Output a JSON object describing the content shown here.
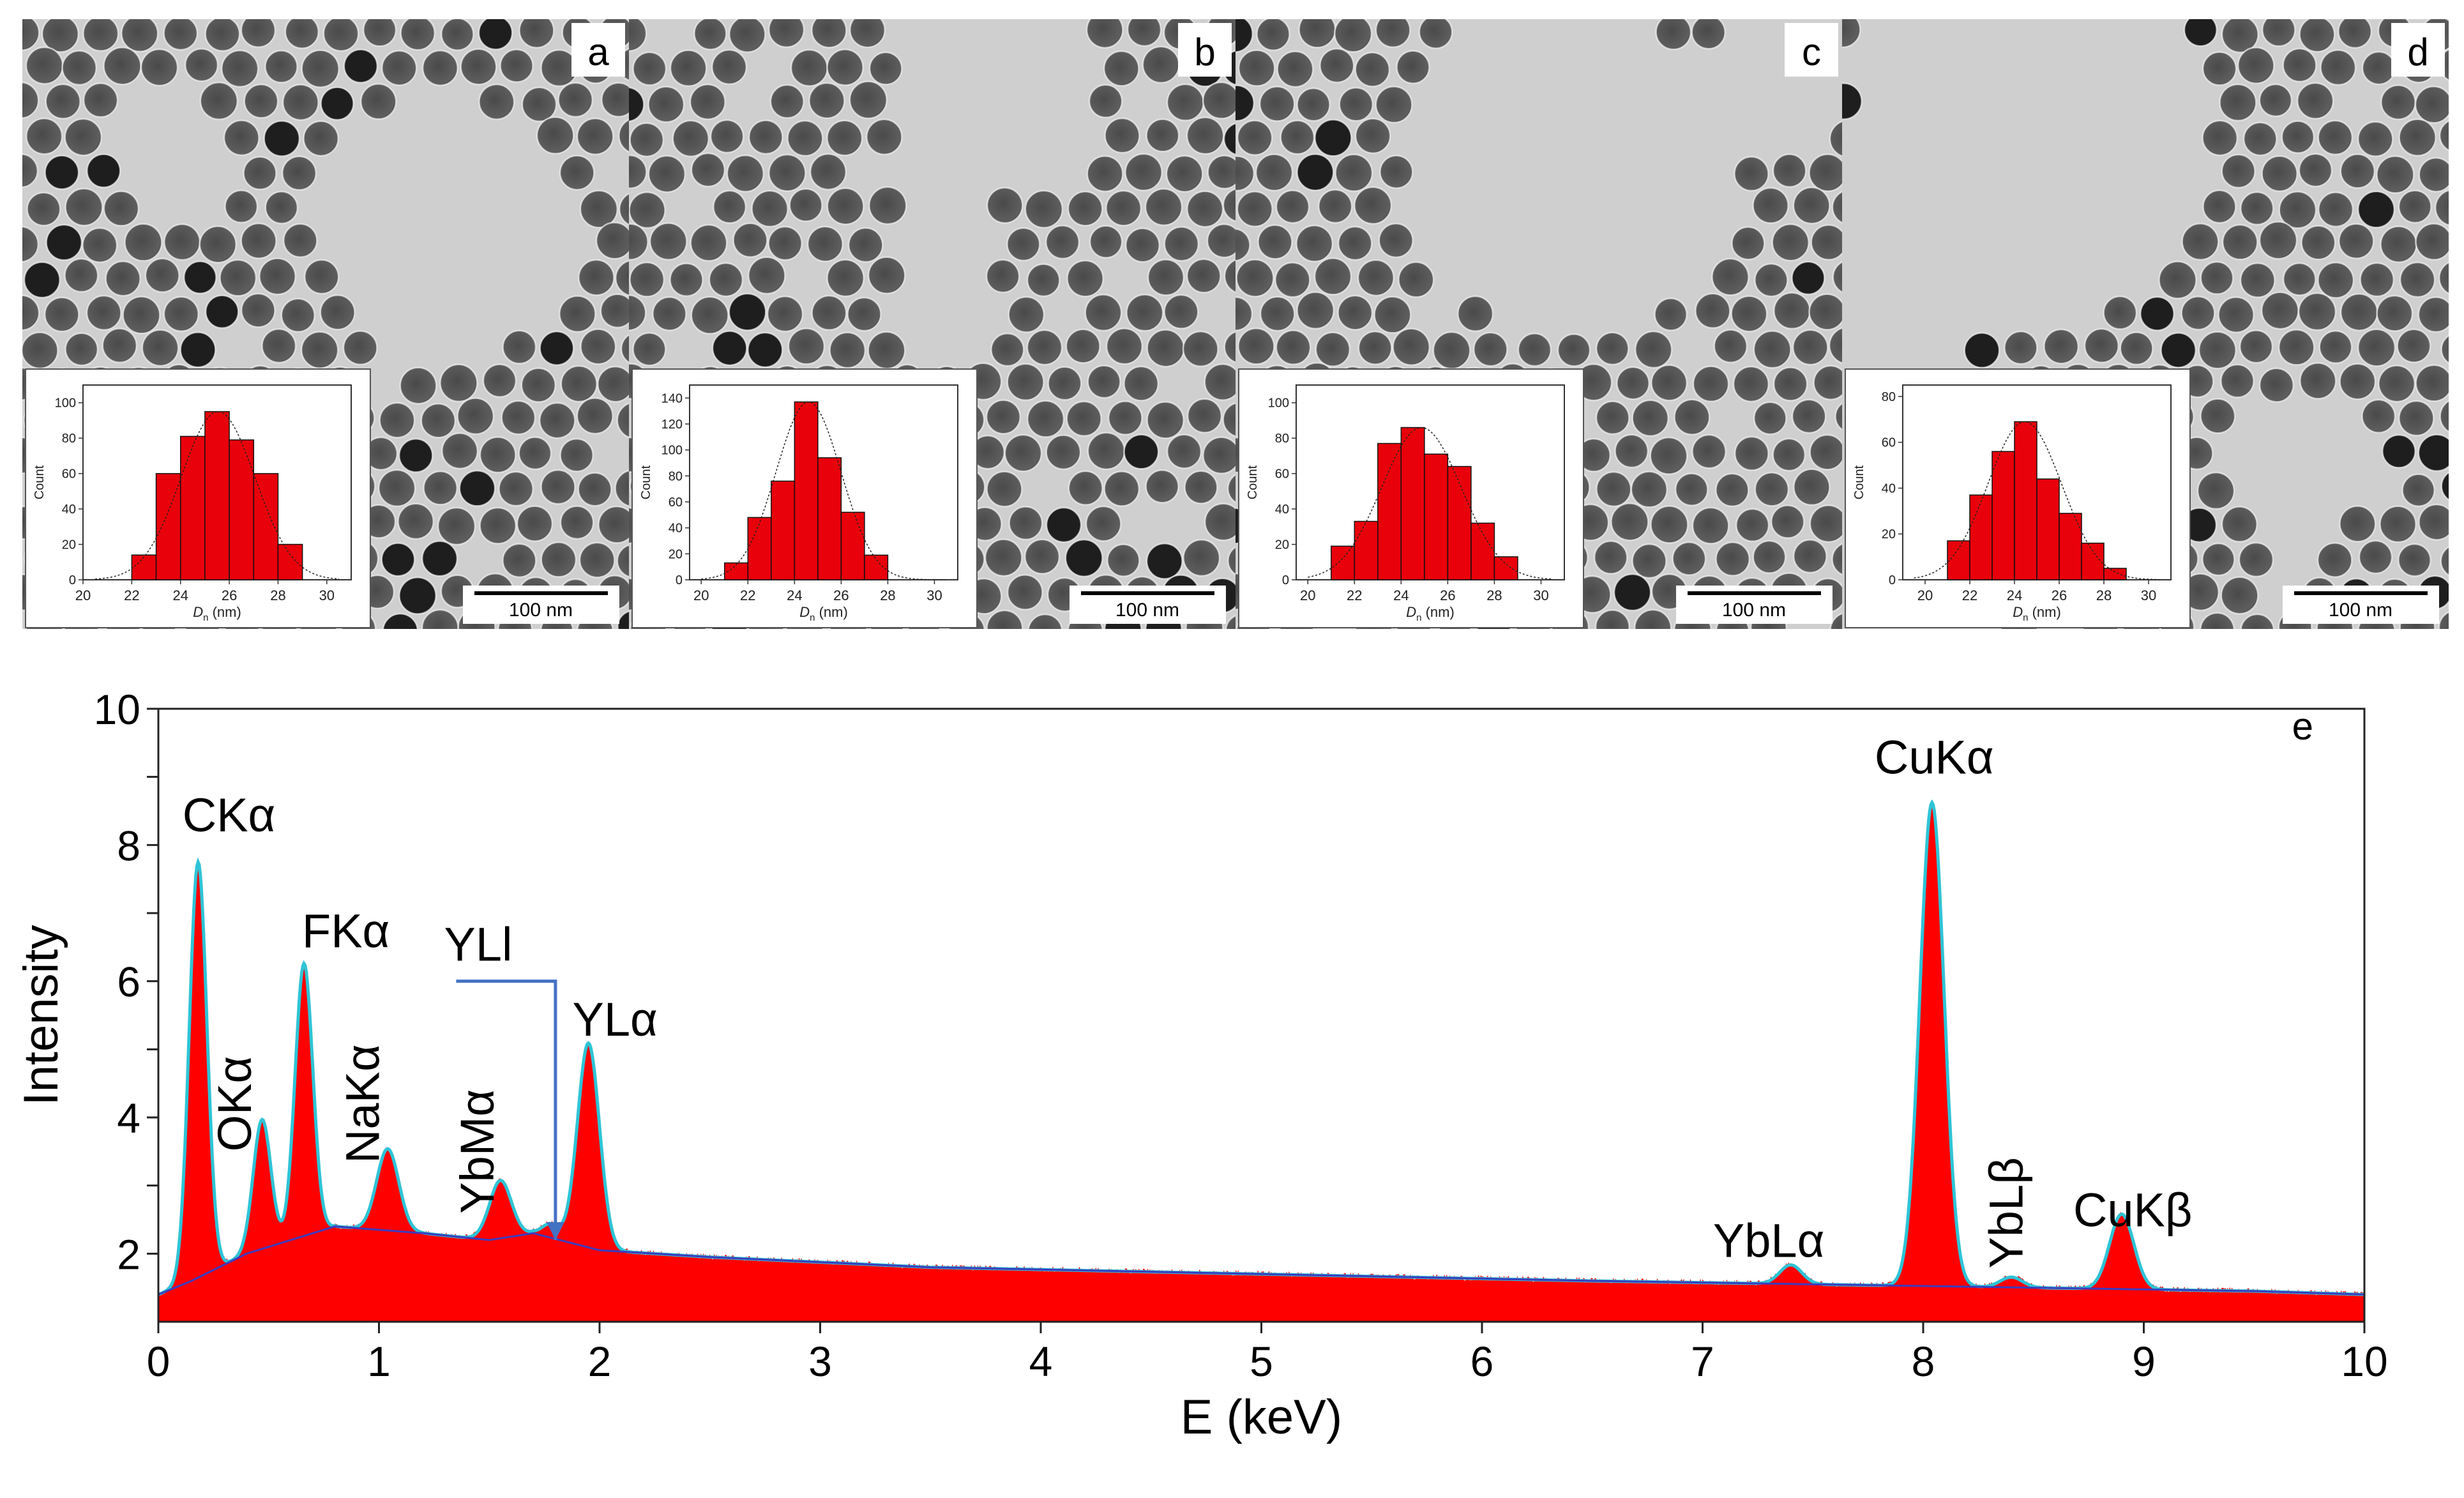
{
  "panels": [
    {
      "label": "a",
      "scale_bar": "100 nm",
      "histogram": {
        "type": "bar",
        "xlabel_sym": "D",
        "xlabel_sub": "n",
        "xlabel_unit": "(nm)",
        "ylabel": "Count",
        "x_ticks": [
          "20",
          "22",
          "24",
          "26",
          "28",
          "30"
        ],
        "y_ticks": [
          "0",
          "20",
          "40",
          "60",
          "80",
          "100"
        ],
        "xlim": [
          20,
          31
        ],
        "ylim": [
          0,
          110
        ],
        "bins": [
          [
            22,
            23,
            14
          ],
          [
            23,
            24,
            60
          ],
          [
            24,
            25,
            81
          ],
          [
            25,
            26,
            95
          ],
          [
            26,
            27,
            79
          ],
          [
            27,
            28,
            60
          ],
          [
            28,
            29,
            20
          ]
        ]
      }
    },
    {
      "label": "b",
      "scale_bar": "100 nm",
      "histogram": {
        "type": "bar",
        "xlabel_sym": "D",
        "xlabel_sub": "n",
        "xlabel_unit": "(nm)",
        "ylabel": "Count",
        "x_ticks": [
          "20",
          "22",
          "24",
          "26",
          "28",
          "30"
        ],
        "y_ticks": [
          "0",
          "20",
          "40",
          "60",
          "80",
          "100",
          "120",
          "140"
        ],
        "xlim": [
          19.5,
          31
        ],
        "ylim": [
          0,
          150
        ],
        "bins": [
          [
            21,
            22,
            13
          ],
          [
            22,
            23,
            48
          ],
          [
            23,
            24,
            76
          ],
          [
            24,
            25,
            137
          ],
          [
            25,
            26,
            94
          ],
          [
            26,
            27,
            52
          ],
          [
            27,
            28,
            19
          ]
        ]
      }
    },
    {
      "label": "c",
      "scale_bar": "100 nm",
      "histogram": {
        "type": "bar",
        "xlabel_sym": "D",
        "xlabel_sub": "n",
        "xlabel_unit": "(nm)",
        "ylabel": "Count",
        "x_ticks": [
          "20",
          "22",
          "24",
          "26",
          "28",
          "30"
        ],
        "y_ticks": [
          "0",
          "20",
          "40",
          "60",
          "80",
          "100"
        ],
        "xlim": [
          19.5,
          31
        ],
        "ylim": [
          0,
          110
        ],
        "bins": [
          [
            21,
            22,
            19
          ],
          [
            22,
            23,
            33
          ],
          [
            23,
            24,
            77
          ],
          [
            24,
            25,
            86
          ],
          [
            25,
            26,
            71
          ],
          [
            26,
            27,
            64
          ],
          [
            27,
            28,
            32
          ],
          [
            28,
            29,
            13
          ]
        ]
      }
    },
    {
      "label": "d",
      "scale_bar": "100 nm",
      "histogram": {
        "type": "bar",
        "xlabel_sym": "D",
        "xlabel_sub": "n",
        "xlabel_unit": "(nm)",
        "ylabel": "Count",
        "x_ticks": [
          "20",
          "22",
          "24",
          "26",
          "28",
          "30"
        ],
        "y_ticks": [
          "0",
          "20",
          "40",
          "60",
          "80"
        ],
        "xlim": [
          19,
          31
        ],
        "ylim": [
          0,
          85
        ],
        "bins": [
          [
            21,
            22,
            17
          ],
          [
            22,
            23,
            37
          ],
          [
            23,
            24,
            56
          ],
          [
            24,
            25,
            69
          ],
          [
            25,
            26,
            44
          ],
          [
            26,
            27,
            29
          ],
          [
            27,
            28,
            16
          ],
          [
            28,
            29,
            5
          ]
        ]
      }
    }
  ],
  "chart_data": {
    "type": "area",
    "panel_label": "e",
    "xlabel": "E (keV)",
    "ylabel": "Intensity",
    "xlim": [
      0,
      10
    ],
    "ylim": [
      1,
      10
    ],
    "x_ticks": [
      "0",
      "1",
      "2",
      "3",
      "4",
      "5",
      "6",
      "7",
      "8",
      "9",
      "10"
    ],
    "y_ticks": [
      "2",
      "4",
      "6",
      "8",
      "10"
    ],
    "x_tick_values": [
      0,
      1,
      2,
      3,
      4,
      5,
      6,
      7,
      8,
      9,
      10
    ],
    "y_tick_values": [
      2,
      4,
      6,
      8,
      10
    ],
    "colors": {
      "spectrum": "#ff0000",
      "fit": "#2ec4d6",
      "background": "#3b3bbf",
      "arrow": "#4472c4"
    },
    "baseline": [
      [
        0,
        1.4
      ],
      [
        0.15,
        1.6
      ],
      [
        0.4,
        2.0
      ],
      [
        0.8,
        2.4
      ],
      [
        1.2,
        2.3
      ],
      [
        1.5,
        2.2
      ],
      [
        1.7,
        2.3
      ],
      [
        2.0,
        2.05
      ],
      [
        2.5,
        1.95
      ],
      [
        3.5,
        1.8
      ],
      [
        5.0,
        1.7
      ],
      [
        6.5,
        1.6
      ],
      [
        7.5,
        1.55
      ],
      [
        8.5,
        1.5
      ],
      [
        9.5,
        1.45
      ],
      [
        10,
        1.4
      ]
    ],
    "peaks": [
      {
        "name": "CKα",
        "center": 0.18,
        "height": 6.1,
        "width": 0.04
      },
      {
        "name": "OKα",
        "center": 0.47,
        "height": 1.9,
        "width": 0.04
      },
      {
        "name": "FKα",
        "center": 0.66,
        "height": 4.0,
        "width": 0.04
      },
      {
        "name": "NaKα",
        "center": 1.04,
        "height": 1.2,
        "width": 0.05
      },
      {
        "name": "YbMα",
        "center": 1.55,
        "height": 0.85,
        "width": 0.05
      },
      {
        "name": "YLl",
        "center": 1.78,
        "height": 0.2,
        "width": 0.04
      },
      {
        "name": "YLα",
        "center": 1.95,
        "height": 3.0,
        "width": 0.05
      },
      {
        "name": "YbLα",
        "center": 7.4,
        "height": 0.28,
        "width": 0.05
      },
      {
        "name": "CuKα",
        "center": 8.04,
        "height": 7.1,
        "width": 0.055
      },
      {
        "name": "YbLβ",
        "center": 8.4,
        "height": 0.15,
        "width": 0.05
      },
      {
        "name": "CuKβ",
        "center": 8.9,
        "height": 1.1,
        "width": 0.055
      }
    ],
    "annotations": [
      {
        "text": "CKα",
        "x": 0.32,
        "y": 8.2
      },
      {
        "text": "FKα",
        "x": 0.85,
        "y": 6.5
      },
      {
        "text": "OKα",
        "x": 0.42,
        "y": 4.2,
        "rotate": true
      },
      {
        "text": "NaKα",
        "x": 1.0,
        "y": 4.2,
        "rotate": true
      },
      {
        "text": "YbMα",
        "x": 1.52,
        "y": 3.5,
        "rotate": true
      },
      {
        "text": "YLl",
        "x": 1.45,
        "y": 6.3
      },
      {
        "text": "YLα",
        "x": 2.07,
        "y": 5.2
      },
      {
        "text": "YbLα",
        "x": 7.3,
        "y": 1.95
      },
      {
        "text": "CuKα",
        "x": 8.05,
        "y": 9.05
      },
      {
        "text": "YbLβ",
        "x": 8.45,
        "y": 2.6,
        "rotate": true
      },
      {
        "text": "CuKβ",
        "x": 8.95,
        "y": 2.4
      }
    ],
    "arrow": {
      "from": [
        1.35,
        6.0
      ],
      "corner": [
        1.8,
        6.0
      ],
      "to": [
        1.8,
        2.2
      ]
    }
  }
}
